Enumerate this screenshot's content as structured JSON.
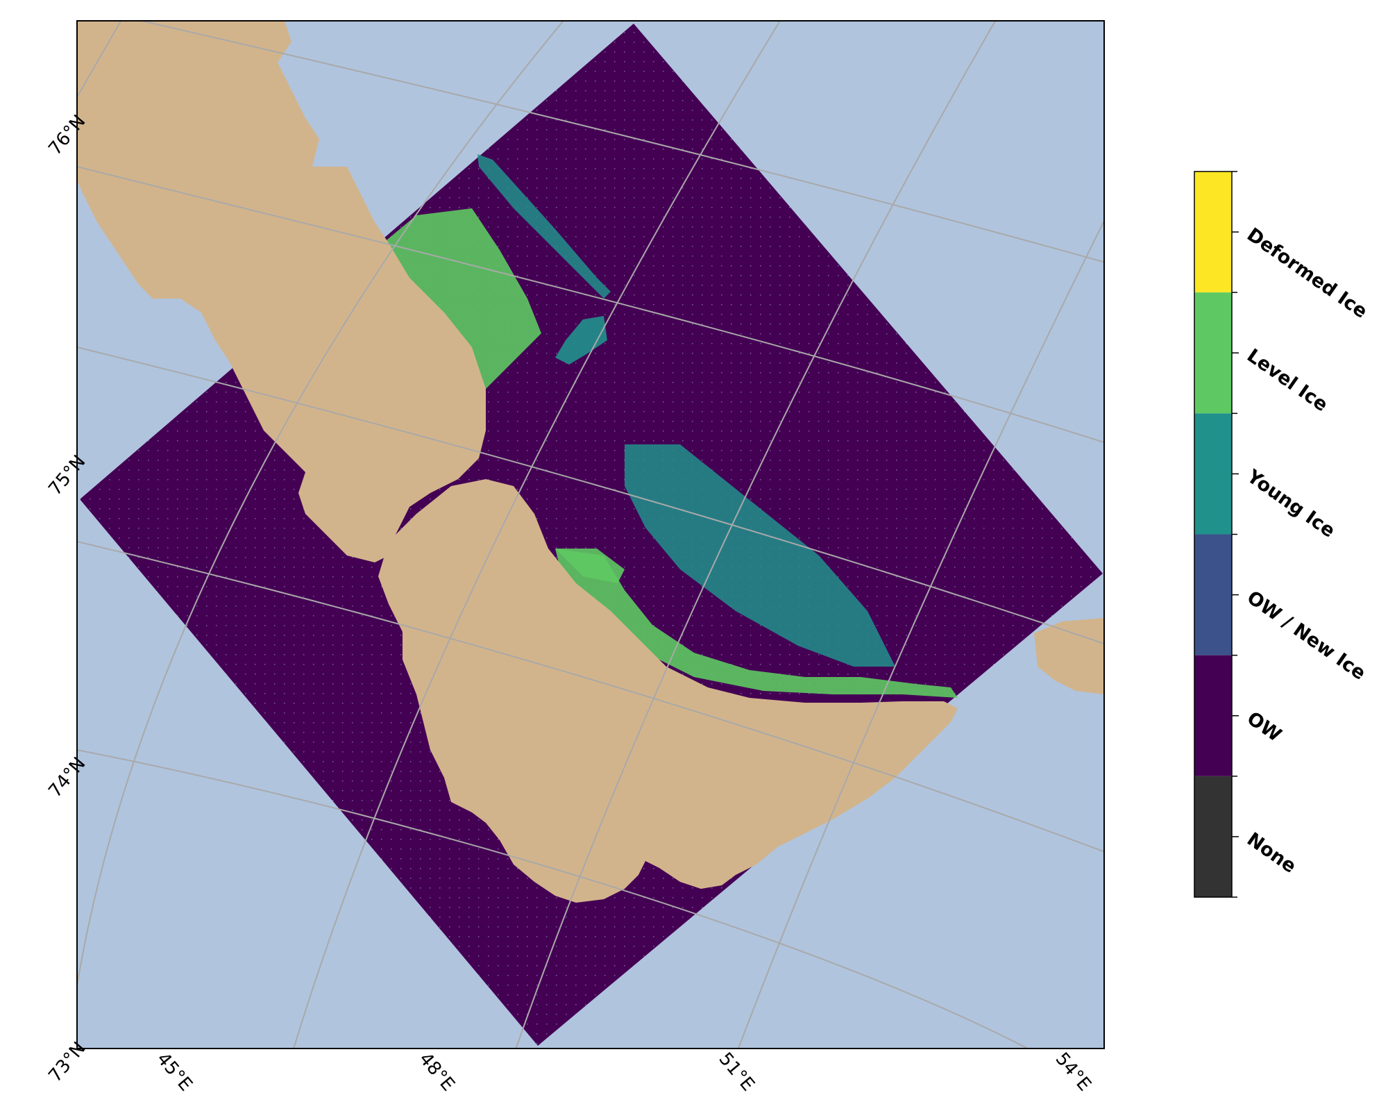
{
  "map": {
    "projection": "stereographic",
    "grid": true,
    "colors": {
      "ocean": "#b0c4de",
      "land": "#d2b48c",
      "gridline": "#a9a9a9",
      "frame": "#000000"
    },
    "lat_labels": [
      "76°N",
      "75°N",
      "74°N",
      "73°N"
    ],
    "lon_labels": [
      "45°E",
      "48°E",
      "51°E",
      "54°E"
    ]
  },
  "legend": {
    "title": "",
    "placement": "right",
    "classes": [
      {
        "label": "Deformed Ice",
        "color": "#fde725"
      },
      {
        "label": "Level Ice",
        "color": "#5ec962"
      },
      {
        "label": "Young Ice",
        "color": "#21918c"
      },
      {
        "label": "OW / New Ice",
        "color": "#3b528b"
      },
      {
        "label": "OW",
        "color": "#440154"
      },
      {
        "label": "None",
        "color": "#333333"
      }
    ]
  }
}
